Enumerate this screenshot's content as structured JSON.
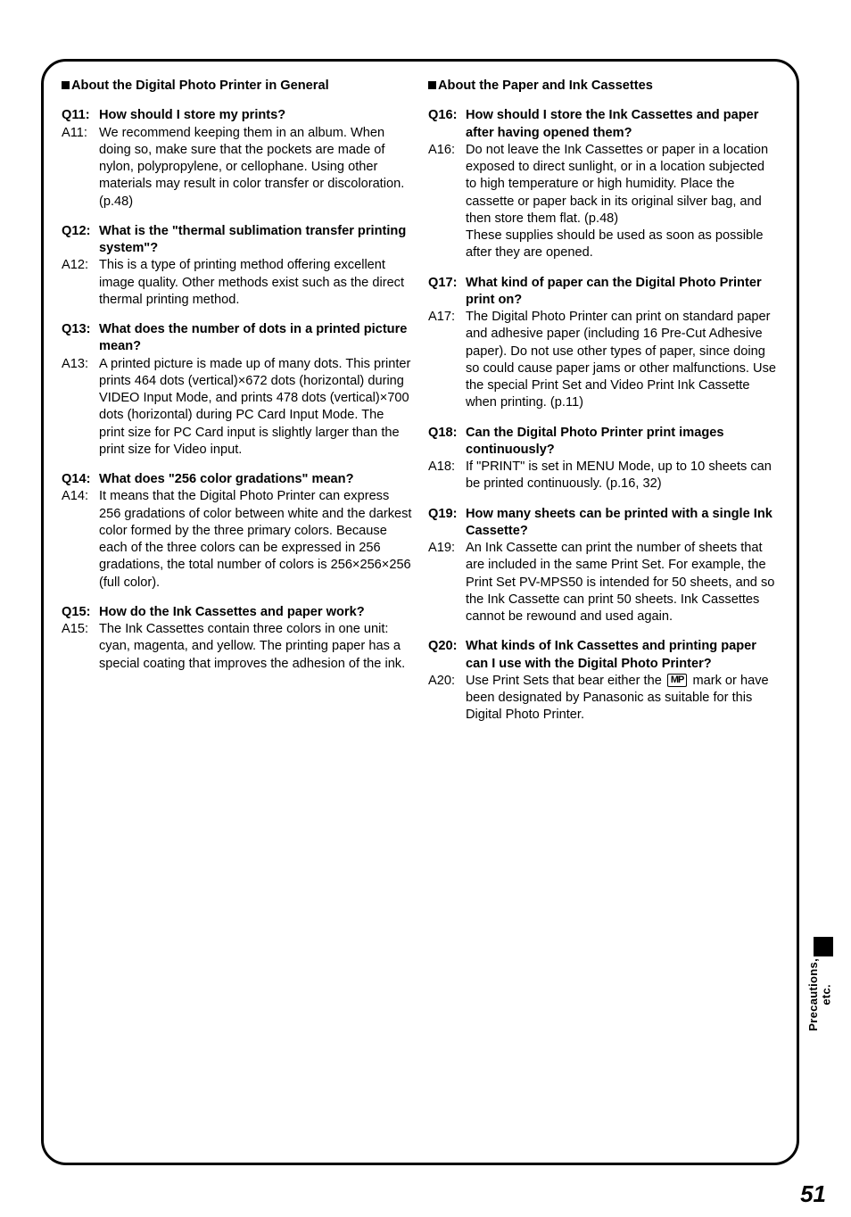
{
  "page_number": "51",
  "side_tab": "Precautions,\netc.",
  "columns": {
    "left": {
      "heading": "About the Digital Photo Printer in General",
      "items": [
        {
          "q_label": "Q11:",
          "q_text": "How should I store my prints?",
          "a_label": "A11:",
          "a_text": "We recommend keeping them in an album. When doing so, make sure that the pockets are made of nylon, polypropylene, or cellophane. Using other materials may result in color transfer or discoloration. (p.48)"
        },
        {
          "q_label": "Q12:",
          "q_text": "What is the \"thermal sublimation transfer printing system\"?",
          "a_label": "A12:",
          "a_text": "This is a type of printing method offering excellent image quality. Other methods exist such as the direct thermal printing method."
        },
        {
          "q_label": "Q13:",
          "q_text": "What does the number of dots in a printed picture mean?",
          "a_label": "A13:",
          "a_text": "A printed picture is made up of many dots. This printer prints 464 dots (vertical)×672 dots (horizontal) during VIDEO Input Mode, and prints 478 dots (vertical)×700 dots (horizontal) during PC Card Input Mode. The print size for PC Card input is slightly larger than the print size for Video input."
        },
        {
          "q_label": "Q14:",
          "q_text": "What does \"256 color gradations\" mean?",
          "a_label": "A14:",
          "a_text": "It means that the Digital Photo Printer can express 256 gradations of color between white and the darkest color formed by the three primary colors. Because each of the three colors can be expressed in 256 gradations, the total number of colors is 256×256×256 (full color)."
        },
        {
          "q_label": "Q15:",
          "q_text": "How do the Ink Cassettes and paper work?",
          "a_label": "A15:",
          "a_text": "The Ink Cassettes contain three colors in one unit: cyan, magenta, and yellow. The printing paper has a special coating that improves the adhesion of the ink."
        }
      ]
    },
    "right": {
      "heading": "About the Paper and Ink Cassettes",
      "items": [
        {
          "q_label": "Q16:",
          "q_text": "How should I store the Ink Cassettes and paper after having opened them?",
          "a_label": "A16:",
          "a_text": "Do not leave the Ink Cassettes or paper in a location exposed to direct sunlight, or in a location subjected to high temperature or high humidity. Place the cassette or paper back in its original silver bag, and then store them flat. (p.48)\nThese supplies should be used as soon as possible after they are opened."
        },
        {
          "q_label": "Q17:",
          "q_text": "What kind of paper can the Digital Photo Printer print on?",
          "a_label": "A17:",
          "a_text": "The Digital Photo Printer can print on standard paper and adhesive paper (including 16 Pre-Cut Adhesive paper). Do not use other types of paper, since doing so could cause paper jams or other malfunctions. Use the special Print Set and Video Print Ink Cassette when printing. (p.11)"
        },
        {
          "q_label": "Q18:",
          "q_text": "Can the Digital Photo Printer print images continuously?",
          "a_label": "A18:",
          "a_text": "If \"PRINT\" is set in MENU Mode, up to 10 sheets can be printed continuously. (p.16, 32)"
        },
        {
          "q_label": "Q19:",
          "q_text": "How many sheets can be printed with a single Ink Cassette?",
          "a_label": "A19:",
          "a_text": "An Ink Cassette can print the number of sheets that are included in the same Print Set. For example, the Print Set PV-MPS50 is intended for 50 sheets, and so the Ink Cassette can print 50 sheets. Ink Cassettes cannot be rewound and used again."
        },
        {
          "q_label": "Q20:",
          "q_text": "What kinds of Ink Cassettes and printing paper can I use with the Digital Photo Printer?",
          "a_label": "A20:",
          "a_text_pre": "Use Print Sets that bear either the ",
          "a_text_post": " mark or have been designated by Panasonic as suitable for this Digital Photo Printer.",
          "icon_label": "MP",
          "has_icon": true
        }
      ]
    }
  }
}
